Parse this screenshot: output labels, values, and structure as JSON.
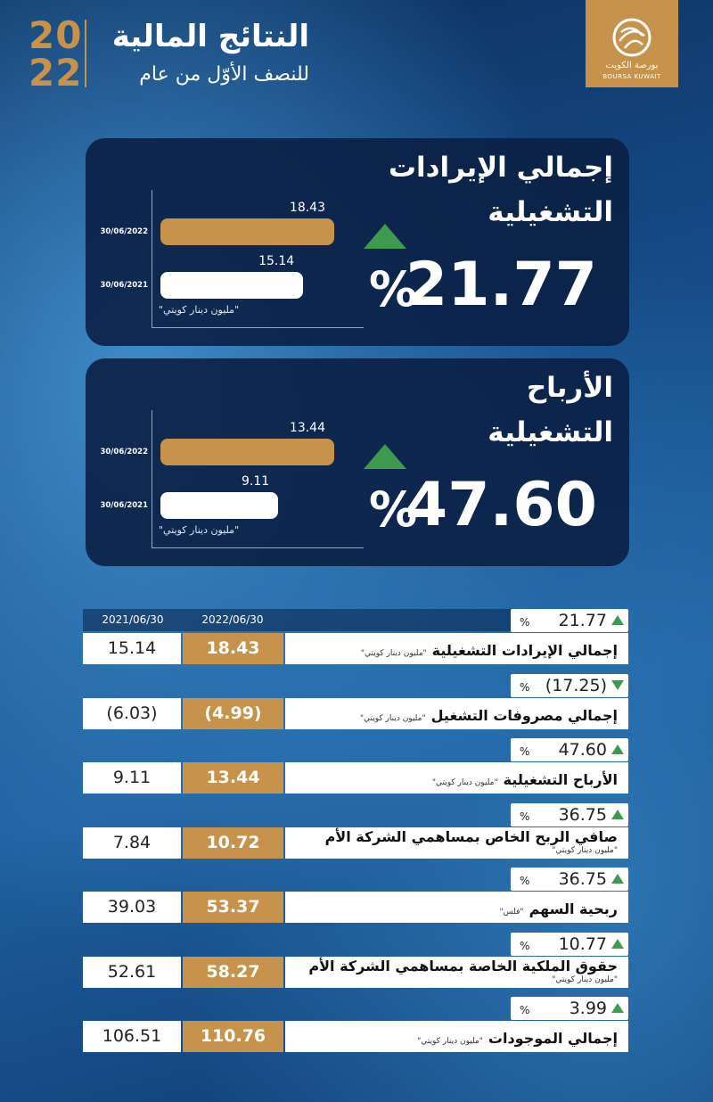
{
  "header": {
    "year_top": "20",
    "year_bottom": "22",
    "title": "النتائج المالية",
    "subtitle": "للنصف الأوّل من عام",
    "logo_ar": "بورصة الكويت",
    "logo_en": "BOURSA KUWAIT"
  },
  "chart_data": [
    {
      "type": "bar",
      "orientation": "horizontal",
      "title_lines": [
        "إجمالي الإيرادات",
        "التشغيلية"
      ],
      "change": "21.77",
      "change_unit": "%",
      "direction": "up",
      "categories": [
        "30/06/2022",
        "30/06/2021"
      ],
      "values": [
        18.43,
        15.14
      ],
      "colors": [
        "#c6924c",
        "#ffffff"
      ],
      "unit_note": "\"مليون دينار كويتي\""
    },
    {
      "type": "bar",
      "orientation": "horizontal",
      "title_lines": [
        "الأرباح",
        "التشغيلية"
      ],
      "change": "47.60",
      "change_unit": "%",
      "direction": "up",
      "categories": [
        "30/06/2022",
        "30/06/2021"
      ],
      "values": [
        13.44,
        9.11
      ],
      "colors": [
        "#c6924c",
        "#ffffff"
      ],
      "unit_note": "\"مليون دينار كويتي\""
    }
  ],
  "table": {
    "columns": [
      "2021/06/30",
      "2022/06/30"
    ],
    "rows": [
      {
        "change": "21.77",
        "change_unit": "%",
        "direction": "up",
        "label": "إجمالي الإيرادات التشغيلية",
        "note": "\"مليون دينار كويتي\"",
        "v2022": "18.43",
        "v2021": "15.14"
      },
      {
        "change": "(17.25)",
        "change_unit": "%",
        "direction": "down",
        "label": "إجمالي مصروفات التشغيل",
        "note": "\"مليون دينار كويتي\"",
        "v2022": "(4.99)",
        "v2021": "(6.03)"
      },
      {
        "change": "47.60",
        "change_unit": "%",
        "direction": "up",
        "label": "الأرباح التشغيلية",
        "note": "\"مليون دينار كويتي\"",
        "v2022": "13.44",
        "v2021": "9.11"
      },
      {
        "change": "36.75",
        "change_unit": "%",
        "direction": "up",
        "label": "صافي الربح الخاص بمساهمي الشركة الأم",
        "note": "\"مليون دينار كويتي\"",
        "v2022": "10.72",
        "v2021": "7.84"
      },
      {
        "change": "36.75",
        "change_unit": "%",
        "direction": "up",
        "label": "ربحية السهم",
        "note": "\"فلس\"",
        "v2022": "53.37",
        "v2021": "39.03"
      },
      {
        "change": "10.77",
        "change_unit": "%",
        "direction": "up",
        "label": "حقوق الملكية الخاصة بمساهمي الشركة الأم",
        "note": "\"مليون دينار كويتي\"",
        "v2022": "58.27",
        "v2021": "52.61"
      },
      {
        "change": "3.99",
        "change_unit": "%",
        "direction": "up",
        "label": "إجمالي الموجودات",
        "note": "\"مليون دينار كويتي\"",
        "v2022": "110.76",
        "v2021": "106.51"
      }
    ]
  }
}
